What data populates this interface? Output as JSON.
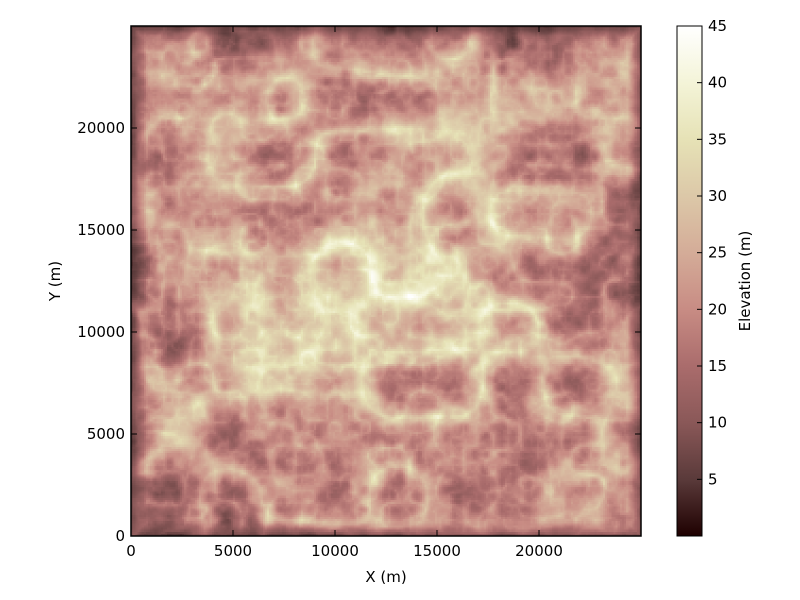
{
  "chart_data": {
    "type": "heatmap",
    "description_kind": "raster elevation map of a dendritic drainage network",
    "xlabel": "X (m)",
    "ylabel": "Y (m)",
    "xlim": [
      0,
      25000
    ],
    "ylim": [
      0,
      25000
    ],
    "x_ticks": [
      0,
      5000,
      10000,
      15000,
      20000
    ],
    "y_ticks": [
      0,
      5000,
      10000,
      15000,
      20000
    ],
    "colorbar": {
      "label": "Elevation (m)",
      "range": [
        0,
        45
      ],
      "ticks": [
        5,
        10,
        15,
        20,
        25,
        30,
        35,
        40,
        45
      ],
      "colormap": "pink",
      "colormap_stops": [
        {
          "value": 0,
          "color": "#1e0000"
        },
        {
          "value": 5,
          "color": "#5a3a3a"
        },
        {
          "value": 10,
          "color": "#8a5858"
        },
        {
          "value": 15,
          "color": "#aa6c6c"
        },
        {
          "value": 20,
          "color": "#c88c84"
        },
        {
          "value": 25,
          "color": "#d4ac98"
        },
        {
          "value": 30,
          "color": "#dcc8a8"
        },
        {
          "value": 35,
          "color": "#e6e2b6"
        },
        {
          "value": 40,
          "color": "#f4f4d8"
        },
        {
          "value": 45,
          "color": "#ffffff"
        }
      ]
    },
    "ridges_peak_elevation": 45,
    "grid": false,
    "legend": "colorbar-right"
  }
}
